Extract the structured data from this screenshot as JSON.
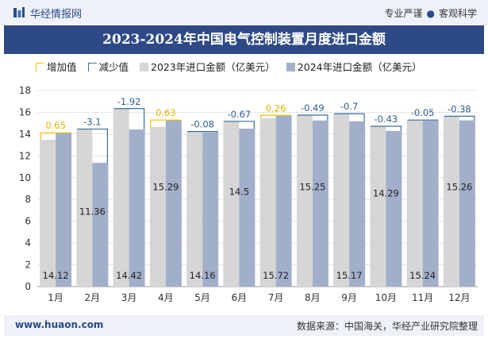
{
  "header": {
    "brand": "华经情报网",
    "tag1": "专业严谨",
    "tag2": "客观科学"
  },
  "colors": {
    "increase": "#f2c200",
    "decrease": "#3a6e98",
    "s2023": "#d6d6d6",
    "s2024": "#a2afcb",
    "titlebar": "#2e4a86"
  },
  "chart_data": {
    "type": "bar",
    "title": "2023-2024年中国电气控制装置月度进口金额",
    "legend": [
      "增加值",
      "减少值",
      "2023年进口金额（亿美元）",
      "2024年进口金额（亿美元）"
    ],
    "legend_position": "top-left",
    "categories": [
      "1月",
      "2月",
      "3月",
      "4月",
      "5月",
      "6月",
      "7月",
      "8月",
      "9月",
      "10月",
      "11月",
      "12月"
    ],
    "series": [
      {
        "name": "2023年进口金额（亿美元）",
        "values": [
          13.47,
          14.46,
          16.34,
          14.66,
          14.24,
          15.17,
          15.46,
          15.74,
          15.87,
          14.72,
          15.29,
          15.64
        ]
      },
      {
        "name": "2024年进口金额（亿美元）",
        "values": [
          14.12,
          11.36,
          14.42,
          15.29,
          14.16,
          14.5,
          15.72,
          15.25,
          15.17,
          14.29,
          15.24,
          15.26
        ]
      }
    ],
    "changes": [
      0.65,
      -3.1,
      -1.92,
      0.63,
      -0.08,
      -0.67,
      0.26,
      -0.49,
      -0.7,
      -0.43,
      -0.05,
      -0.38
    ],
    "change_labels": [
      "0.65",
      "-3.1",
      "-1.92",
      "0.63",
      "-0.08",
      "-0.67",
      "0.26",
      "-0.49",
      "-0.7",
      "-0.43",
      "-0.05",
      "-0.38"
    ],
    "value_labels": [
      "14.12",
      "11.36",
      "14.42",
      "15.29",
      "14.16",
      "14.5",
      "15.72",
      "15.25",
      "15.17",
      "14.29",
      "15.24",
      "15.26"
    ],
    "yticks": [
      "0",
      "2",
      "4",
      "6",
      "8",
      "10",
      "12",
      "14",
      "16",
      "18"
    ],
    "ylim": [
      0,
      18
    ],
    "grid": true
  },
  "footer": {
    "site": "www.huaon.com",
    "source": "数据来源：中国海关，华经产业研究院整理"
  }
}
